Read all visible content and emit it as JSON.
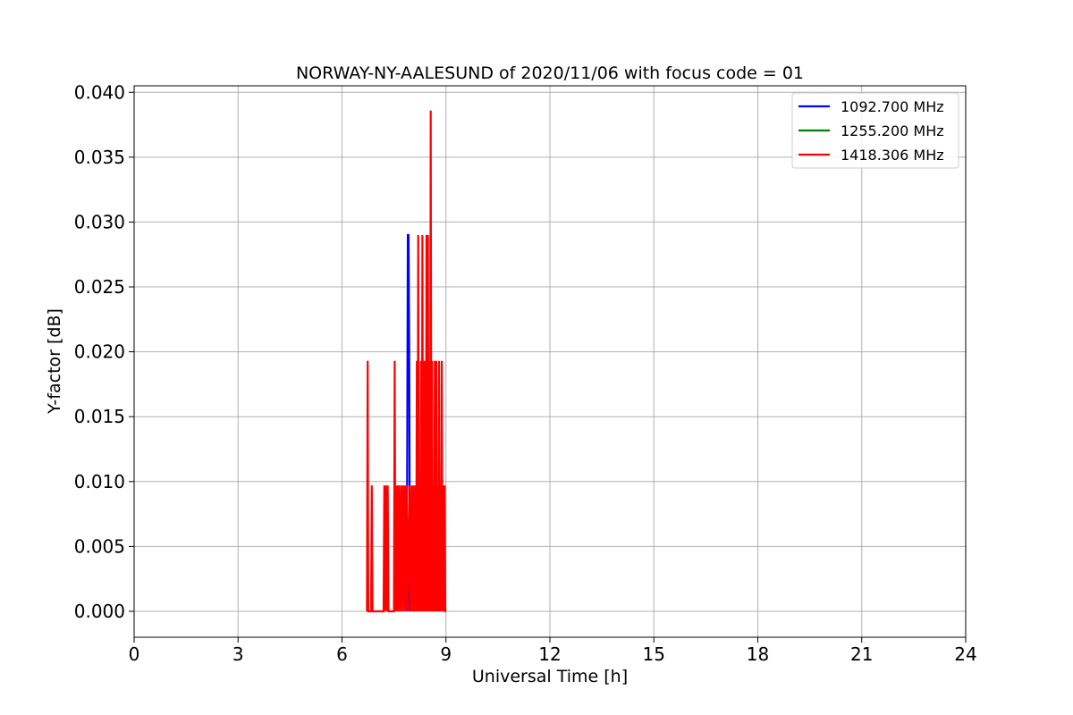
{
  "chart_data": {
    "type": "line",
    "title": "NORWAY-NY-AALESUND of 2020/11/06 with focus code = 01",
    "xlabel": "Universal Time [h]",
    "ylabel": "Y-factor [dB]",
    "xlim": [
      0,
      24
    ],
    "ylim": [
      -0.002,
      0.0405
    ],
    "xticks": [
      0,
      3,
      6,
      9,
      12,
      15,
      18,
      21,
      24
    ],
    "xtick_labels": [
      "0",
      "3",
      "6",
      "9",
      "12",
      "15",
      "18",
      "21",
      "24"
    ],
    "yticks": [
      0.0,
      0.005,
      0.01,
      0.015,
      0.02,
      0.025,
      0.03,
      0.035,
      0.04
    ],
    "ytick_labels": [
      "0.000",
      "0.005",
      "0.010",
      "0.015",
      "0.020",
      "0.025",
      "0.030",
      "0.035",
      "0.040"
    ],
    "grid": true,
    "legend_position": "top-right",
    "series": [
      {
        "name": "1092.700 MHz",
        "color": "#0000ff",
        "x": [
          7.85,
          7.88,
          7.9,
          7.92,
          7.94,
          7.96
        ],
        "y": [
          0.0,
          0.0097,
          0.029,
          0.029,
          0.0193,
          0.0
        ]
      },
      {
        "name": "1255.200 MHz",
        "color": "#008000",
        "x": [],
        "y": []
      },
      {
        "name": "1418.306 MHz",
        "color": "#ff0000",
        "x": [
          6.72,
          6.74,
          6.76,
          6.78,
          6.84,
          6.86,
          6.88,
          6.9,
          7.2,
          7.22,
          7.24,
          7.26,
          7.3,
          7.32,
          7.34,
          7.36,
          7.45,
          7.5,
          7.52,
          7.54,
          7.56,
          7.58,
          7.6,
          7.62,
          7.64,
          7.66,
          7.7,
          7.72,
          7.76,
          7.78,
          7.82,
          7.84,
          7.88,
          7.9,
          7.96,
          7.98,
          8.02,
          8.04,
          8.06,
          8.08,
          8.12,
          8.14,
          8.16,
          8.18,
          8.2,
          8.22,
          8.24,
          8.26,
          8.28,
          8.3,
          8.32,
          8.34,
          8.36,
          8.38,
          8.4,
          8.42,
          8.44,
          8.46,
          8.48,
          8.5,
          8.52,
          8.54,
          8.56,
          8.58,
          8.6,
          8.62,
          8.64,
          8.66,
          8.68,
          8.7,
          8.72,
          8.74,
          8.76,
          8.78,
          8.8,
          8.82,
          8.84,
          8.86,
          8.88,
          8.9,
          8.92,
          8.94,
          8.96,
          8.98,
          9.0
        ],
        "y": [
          0.0,
          0.0193,
          0.0,
          0.0,
          0.0,
          0.0097,
          0.0,
          0.0,
          0.0,
          0.0097,
          0.0,
          0.0097,
          0.0,
          0.0097,
          0.0,
          0.0,
          0.0,
          0.0,
          0.0193,
          0.0,
          0.0097,
          0.0,
          0.0097,
          0.0,
          0.0097,
          0.0,
          0.0097,
          0.0,
          0.0097,
          0.0,
          0.0097,
          0.0,
          0.0097,
          0.0,
          0.0097,
          0.0,
          0.0097,
          0.0,
          0.0097,
          0.0,
          0.0097,
          0.0,
          0.0193,
          0.0,
          0.029,
          0.0,
          0.0097,
          0.0,
          0.0193,
          0.0,
          0.029,
          0.0,
          0.0193,
          0.0,
          0.0193,
          0.0,
          0.029,
          0.0,
          0.029,
          0.0,
          0.0193,
          0.0,
          0.0386,
          0.0,
          0.0193,
          0.0,
          0.0097,
          0.0,
          0.0193,
          0.0,
          0.0193,
          0.0,
          0.0097,
          0.0,
          0.0193,
          0.0,
          0.0097,
          0.0,
          0.0193,
          0.0,
          0.0097,
          0.0,
          0.0097,
          0.0,
          0.0
        ]
      }
    ]
  }
}
